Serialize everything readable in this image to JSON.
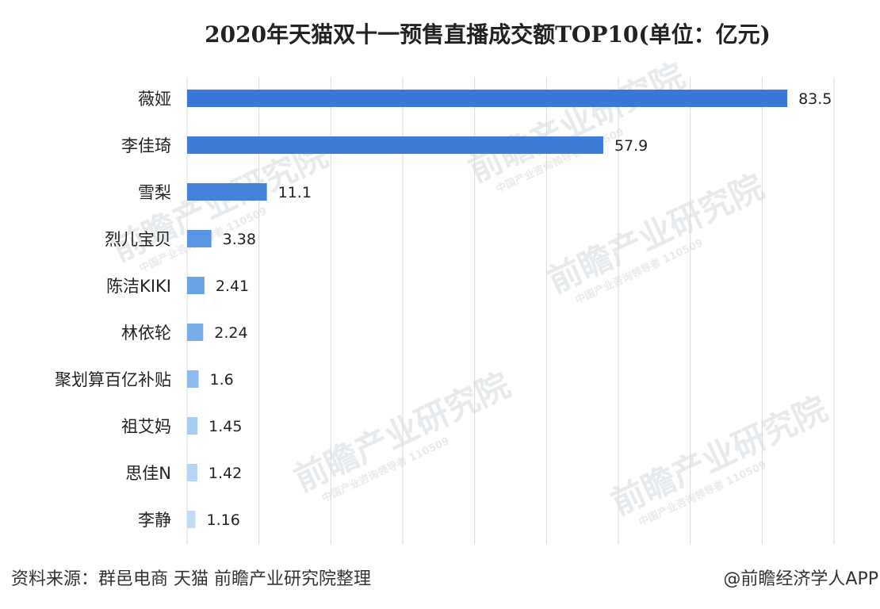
{
  "chart_data": {
    "type": "bar",
    "orientation": "horizontal",
    "title": "2020年天猫双十一预售直播成交额TOP10(单位：亿元)",
    "categories": [
      "薇娅",
      "李佳琦",
      "雪梨",
      "烈儿宝贝",
      "陈洁KIKI",
      "林依轮",
      "聚划算百亿补贴",
      "祖艾妈",
      "思佳N",
      "李静"
    ],
    "values": [
      83.5,
      57.9,
      11.1,
      3.38,
      2.41,
      2.24,
      1.6,
      1.45,
      1.42,
      1.16
    ],
    "value_labels": [
      "83.5",
      "57.9",
      "11.1",
      "3.38",
      "2.41",
      "2.24",
      "1.6",
      "1.45",
      "1.42",
      "1.16"
    ],
    "xlim": [
      0,
      90
    ],
    "x_grid_step": 10,
    "grid": true,
    "xlabel": "",
    "ylabel": ""
  },
  "bar_colors": [
    "#3a78d8",
    "#3e7cda",
    "#4582dc",
    "#5a95e2",
    "#6aa2e6",
    "#7aaeea",
    "#8ebbee",
    "#a9ccf2",
    "#b6d4f4",
    "#c3dcf6"
  ],
  "watermark": {
    "brand": "前瞻产业研究院",
    "sub": "中国产业咨询领导者 110509"
  },
  "footer": {
    "source": "资料来源：群邑电商 天猫 前瞻产业研究院整理",
    "credit": "@前瞻经济学人APP"
  }
}
